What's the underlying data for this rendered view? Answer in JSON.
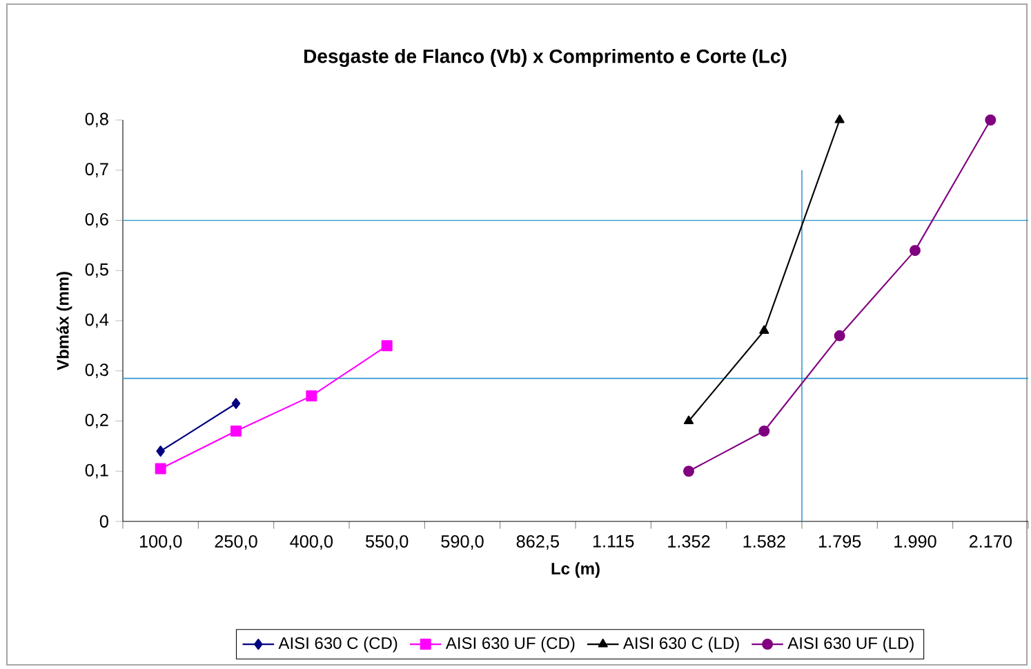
{
  "chart_data": {
    "type": "line",
    "title": "Desgaste de Flanco (Vb) x Comprimento e Corte (Lc)",
    "xlabel": "Lc (m)",
    "ylabel": "Vbmáx (mm)",
    "categories": [
      "100,0",
      "250,0",
      "400,0",
      "550,0",
      "590,0",
      "862,5",
      "1.115",
      "1.352",
      "1.582",
      "1.795",
      "1.990",
      "2.170"
    ],
    "series": [
      {
        "name": "AISI 630 C (CD)",
        "color": "#000080",
        "marker": "diamond",
        "values": [
          0.14,
          0.235,
          null,
          null,
          null,
          null,
          null,
          null,
          null,
          null,
          null,
          null
        ]
      },
      {
        "name": "AISI 630 UF (CD)",
        "color": "#ff00ff",
        "marker": "square",
        "values": [
          0.105,
          0.18,
          0.25,
          0.35,
          null,
          null,
          null,
          null,
          null,
          null,
          null,
          null
        ]
      },
      {
        "name": "AISI 630 C (LD)",
        "color": "#000000",
        "marker": "triangle",
        "values": [
          null,
          null,
          null,
          null,
          null,
          null,
          null,
          0.2,
          0.38,
          0.8,
          null,
          null
        ]
      },
      {
        "name": "AISI 630 UF (LD)",
        "color": "#800080",
        "marker": "circle",
        "values": [
          null,
          null,
          null,
          null,
          null,
          null,
          null,
          0.1,
          0.18,
          0.37,
          0.54,
          0.8
        ]
      }
    ],
    "ylim": [
      0,
      0.8
    ],
    "yticks": [
      {
        "value": 0,
        "label": "0"
      },
      {
        "value": 0.1,
        "label": "0,1"
      },
      {
        "value": 0.2,
        "label": "0,2"
      },
      {
        "value": 0.3,
        "label": "0,3"
      },
      {
        "value": 0.4,
        "label": "0,4"
      },
      {
        "value": 0.5,
        "label": "0,5"
      },
      {
        "value": 0.6,
        "label": "0,6"
      },
      {
        "value": 0.7,
        "label": "0,7"
      },
      {
        "value": 0.8,
        "label": "0,8"
      }
    ],
    "ref_lines": [
      {
        "axis": "y",
        "value": 0.6,
        "color": "#3399cc"
      },
      {
        "axis": "y",
        "value": 0.285,
        "color": "#3399cc"
      }
    ],
    "grid": false,
    "legend": "bottom"
  }
}
